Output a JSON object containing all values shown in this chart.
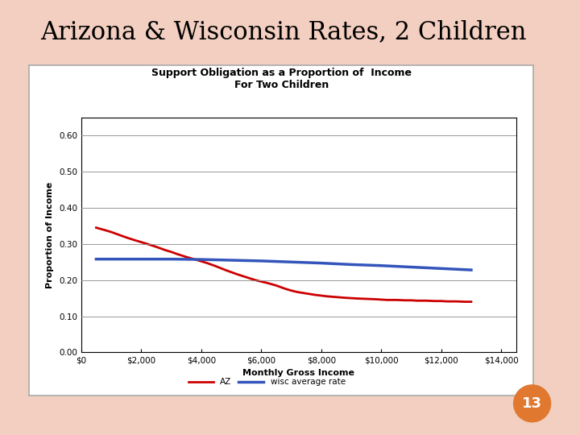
{
  "title": "Arizona & Wisconsin Rates, 2 Children",
  "chart_title_line1": "Support Obligation as a Proportion of  Income",
  "chart_title_line2": "For Two Children",
  "xlabel": "Monthly Gross Income",
  "ylabel": "Proportion of Income",
  "background_color": "#f2cfc0",
  "plot_bg_color": "#ffffff",
  "slide_title_fontsize": 22,
  "chart_title_fontsize": 9,
  "axis_label_fontsize": 8,
  "tick_label_fontsize": 7.5,
  "ylim": [
    0.0,
    0.65
  ],
  "yticks": [
    0.0,
    0.1,
    0.2,
    0.3,
    0.4,
    0.5,
    0.6
  ],
  "ytick_labels": [
    "0.00",
    "0.10",
    "0.20",
    "0.30",
    "0.40",
    "0.50",
    "0.60"
  ],
  "xticks": [
    0,
    2000,
    4000,
    6000,
    8000,
    10000,
    12000,
    14000
  ],
  "xtick_labels": [
    "$0",
    "$2,000",
    "$4,000",
    "$6,000",
    "$8,000",
    "$10,000",
    "$12,000",
    "$14,000"
  ],
  "xlim": [
    0,
    14500
  ],
  "az_x": [
    500,
    800,
    1000,
    1200,
    1500,
    1800,
    2000,
    2200,
    2500,
    2800,
    3000,
    3200,
    3500,
    3800,
    4000,
    4200,
    4500,
    4800,
    5000,
    5200,
    5500,
    5800,
    6000,
    6200,
    6500,
    6800,
    7000,
    7200,
    7500,
    7800,
    8000,
    8200,
    8500,
    8800,
    9000,
    9200,
    9500,
    9800,
    10000,
    10200,
    10500,
    10800,
    11000,
    11200,
    11500,
    11800,
    12000,
    12200,
    12500,
    12800,
    13000
  ],
  "az_y": [
    0.345,
    0.338,
    0.333,
    0.327,
    0.318,
    0.31,
    0.305,
    0.3,
    0.292,
    0.283,
    0.278,
    0.272,
    0.264,
    0.257,
    0.252,
    0.247,
    0.238,
    0.228,
    0.222,
    0.216,
    0.208,
    0.2,
    0.196,
    0.192,
    0.185,
    0.176,
    0.171,
    0.167,
    0.163,
    0.159,
    0.157,
    0.155,
    0.153,
    0.151,
    0.15,
    0.149,
    0.148,
    0.147,
    0.146,
    0.145,
    0.145,
    0.144,
    0.144,
    0.143,
    0.143,
    0.142,
    0.142,
    0.141,
    0.141,
    0.14,
    0.14
  ],
  "wisc_x": [
    500,
    1000,
    2000,
    3000,
    4000,
    5000,
    6000,
    7000,
    8000,
    9000,
    10000,
    11000,
    12000,
    13000
  ],
  "wisc_y": [
    0.258,
    0.258,
    0.258,
    0.258,
    0.257,
    0.255,
    0.253,
    0.25,
    0.247,
    0.243,
    0.24,
    0.236,
    0.232,
    0.228
  ],
  "az_color": "#cc0000",
  "wisc_color": "#3355bb",
  "az_label": "AZ",
  "wisc_label": "wisc average rate",
  "badge_color": "#e07830",
  "badge_text": "13",
  "badge_text_color": "#ffffff",
  "outer_box_color": "#888888",
  "grid_color": "#888888"
}
